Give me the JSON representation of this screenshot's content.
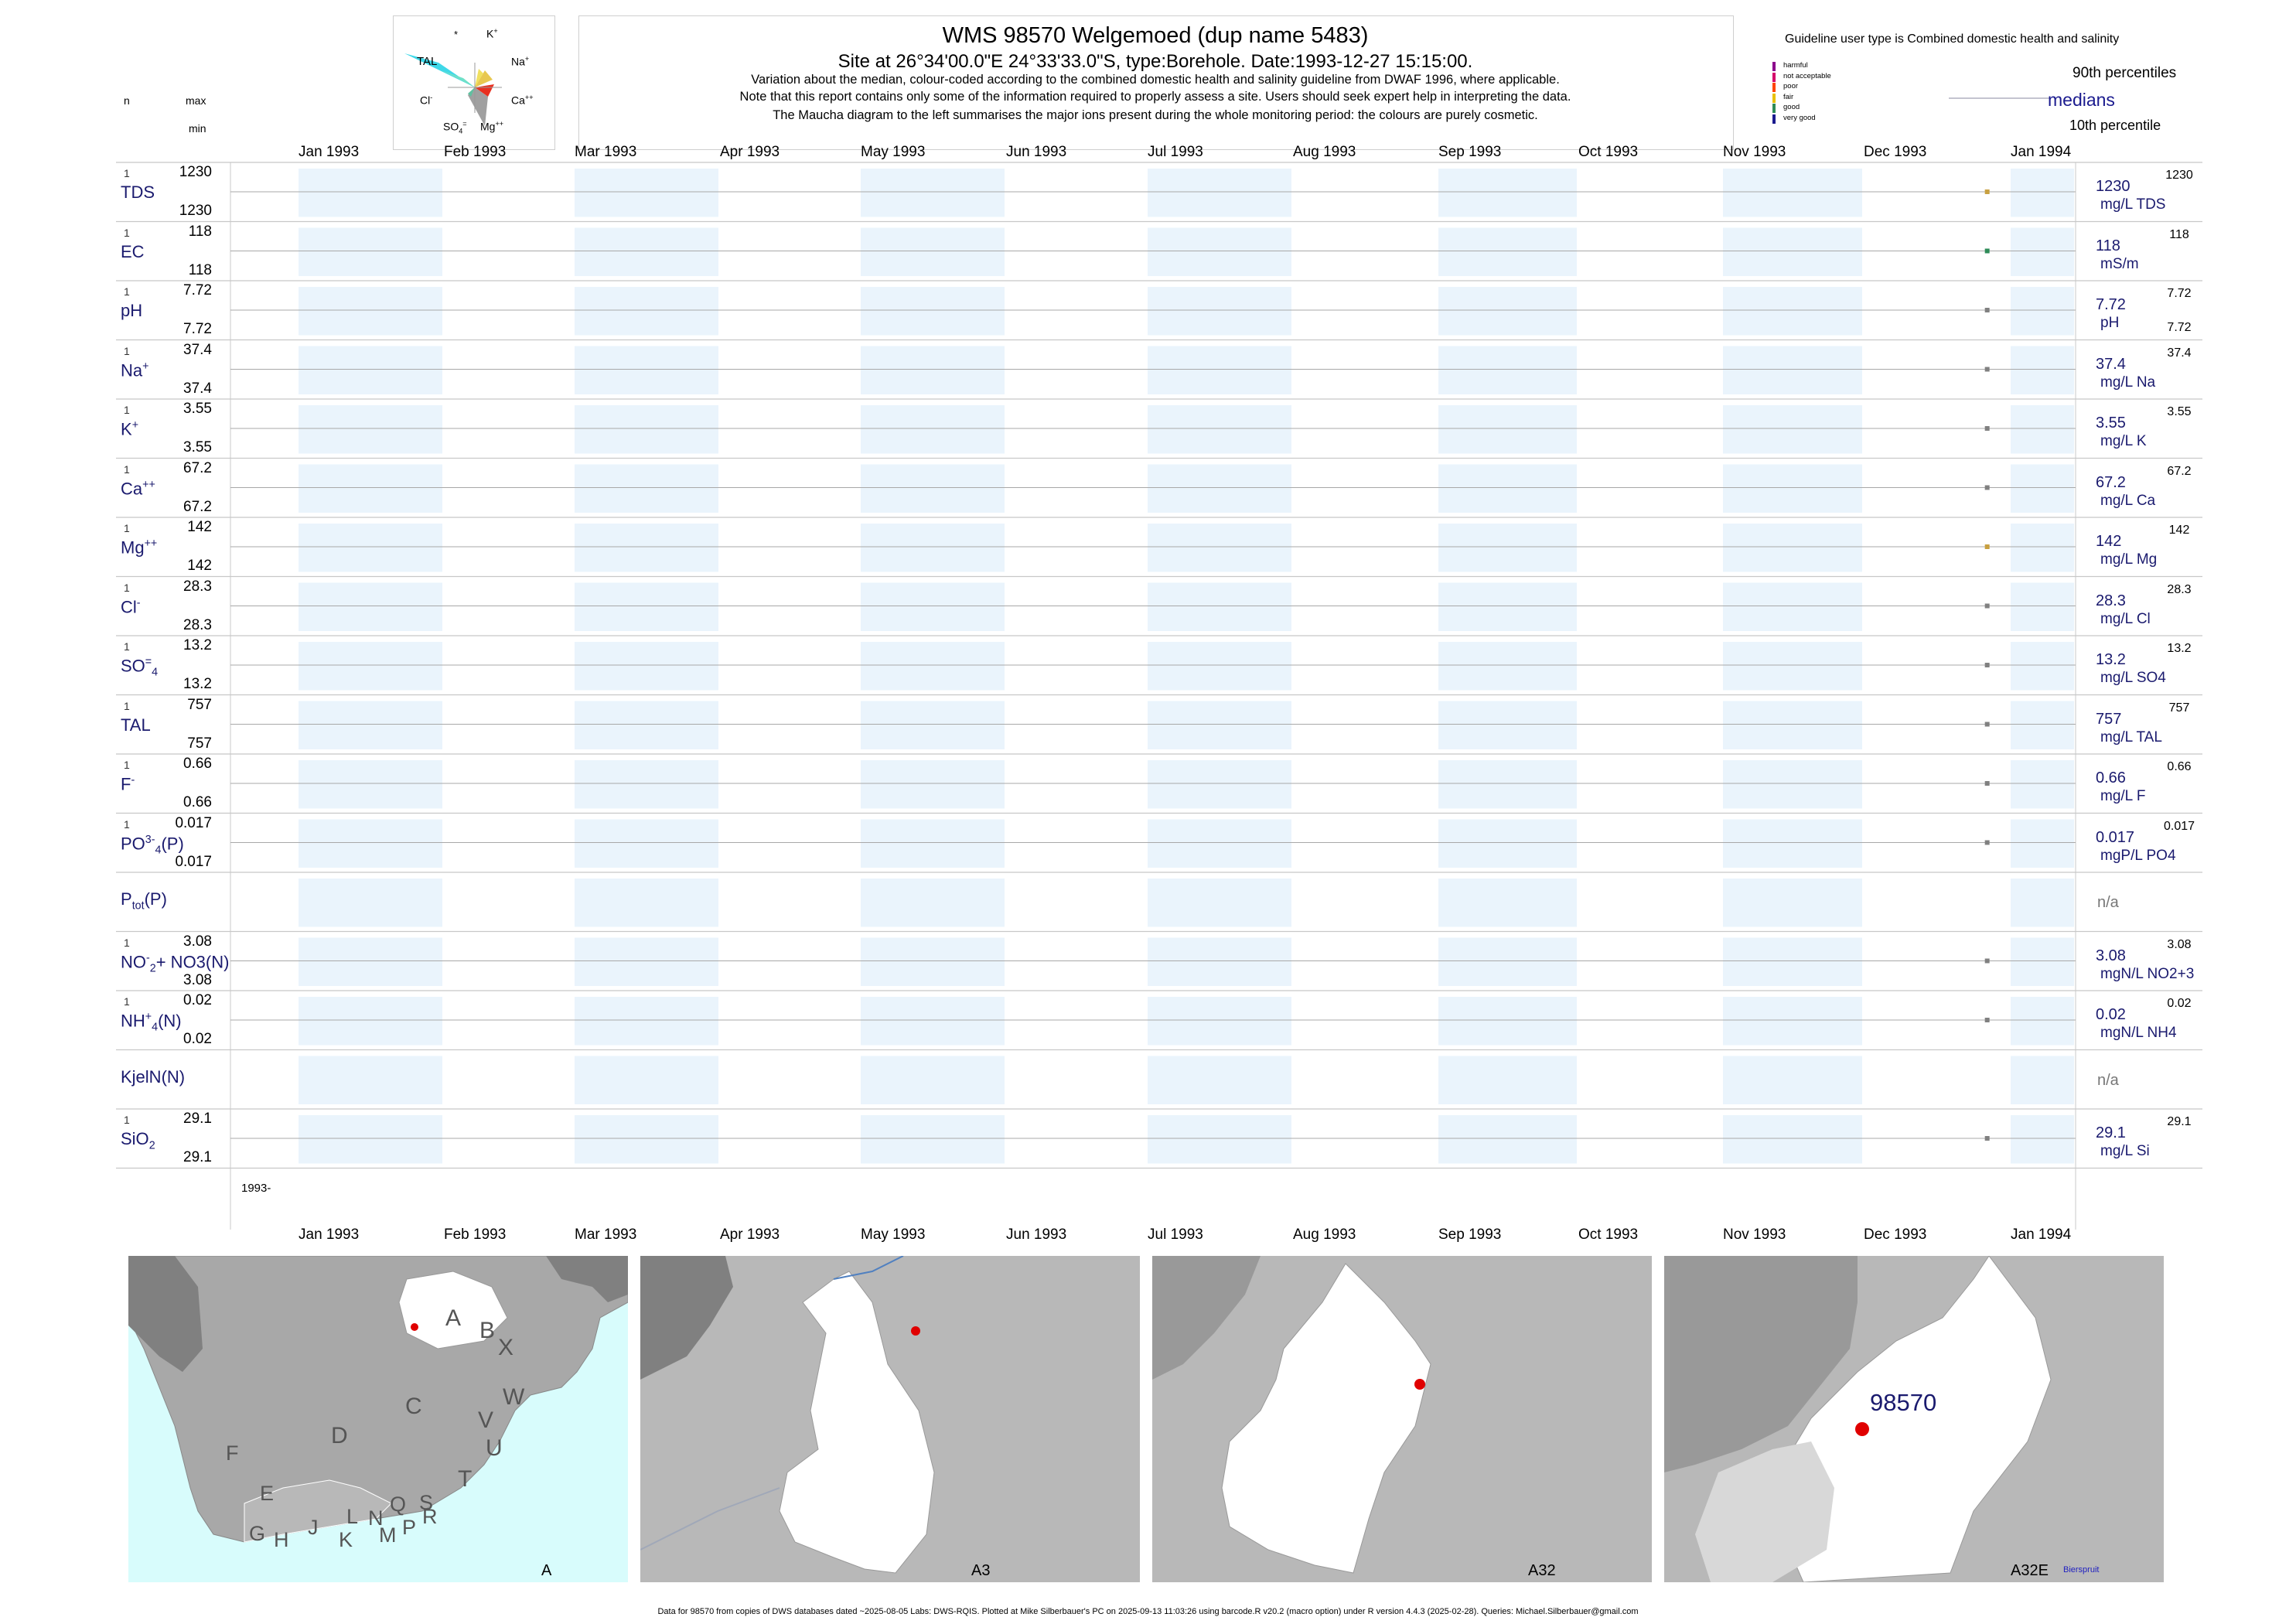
{
  "header": {
    "title": "WMS 98570  Welgemoed (dup name 5483)",
    "subtitle": "Site at 26°34'00.0\"E 24°33'33.0\"S, type:Borehole. Date:1993-12-27 15:15:00.",
    "note1": "Variation about the median,  colour-coded according to the combined domestic health and salinity guideline from DWAF 1996, where applicable.",
    "note2": "Note that this report contains only some of the information required to properly assess a site. Users should seek expert help in interpreting the data.",
    "note3": "The Maucha diagram to the left summarises the major ions present during the whole monitoring period: the colours are purely cosmetic."
  },
  "column_heads": {
    "n": "n",
    "max": "max",
    "min": "min"
  },
  "maucha": {
    "labels": {
      "star": "*",
      "k": "K",
      "k_sup": "+",
      "na": "Na",
      "na_sup": "+",
      "ca": "Ca",
      "ca_sup": "++",
      "mg": "Mg",
      "mg_sup": "++",
      "so4": "SO",
      "so4_sub": "4",
      "so4_sup": "=",
      "cl": "Cl",
      "cl_sup": "-",
      "tal": "TAL"
    }
  },
  "guideline": {
    "title": "Guideline user type is Combined domestic health and salinity",
    "levels": [
      {
        "label": "harmful",
        "color": "#8b008b"
      },
      {
        "label": "not acceptable",
        "color": "#d4006a"
      },
      {
        "label": "poor",
        "color": "#ff4500"
      },
      {
        "label": "fair",
        "color": "#e8c000"
      },
      {
        "label": "good",
        "color": "#2e8b57"
      },
      {
        "label": "very good",
        "color": "#1a1a8e"
      }
    ],
    "p90": "90th percentiles",
    "medians": "medians",
    "p10": "10th percentile"
  },
  "months": [
    "Jan 1993",
    "Feb 1993",
    "Mar 1993",
    "Apr 1993",
    "May 1993",
    "Jun 1993",
    "Jul 1993",
    "Aug 1993",
    "Sep 1993",
    "Oct 1993",
    "Nov 1993",
    "Dec 1993",
    "Jan 1994"
  ],
  "year_label": "1993-",
  "rows": [
    {
      "label": "TDS",
      "sup": "",
      "sub": "",
      "sub2": "",
      "tail": "",
      "n": "1",
      "max": "1230",
      "min": "1230",
      "value": "1230",
      "unit": "mg/L TDS",
      "rmax": "1230",
      "rmin": "",
      "marker": "#c8a040"
    },
    {
      "label": "EC",
      "sup": "",
      "sub": "",
      "sub2": "",
      "tail": "",
      "n": "1",
      "max": "118",
      "min": "118",
      "value": "118",
      "unit": "mS/m",
      "rmax": "118",
      "rmin": "",
      "marker": "#2e8b57"
    },
    {
      "label": "pH",
      "sup": "",
      "sub": "",
      "sub2": "",
      "tail": "",
      "n": "1",
      "max": "7.72",
      "min": "7.72",
      "value": "7.72",
      "unit": "pH",
      "rmax": "7.72",
      "rmin": "7.72",
      "marker": "#808080"
    },
    {
      "label": "Na",
      "sup": "+",
      "sub": "",
      "sub2": "",
      "tail": "",
      "n": "1",
      "max": "37.4",
      "min": "37.4",
      "value": "37.4",
      "unit": "mg/L Na",
      "rmax": "37.4",
      "rmin": "",
      "marker": "#808080"
    },
    {
      "label": "K",
      "sup": "+",
      "sub": "",
      "sub2": "",
      "tail": "",
      "n": "1",
      "max": "3.55",
      "min": "3.55",
      "value": "3.55",
      "unit": "mg/L K",
      "rmax": "3.55",
      "rmin": "",
      "marker": "#808080"
    },
    {
      "label": "Ca",
      "sup": "++",
      "sub": "",
      "sub2": "",
      "tail": "",
      "n": "1",
      "max": "67.2",
      "min": "67.2",
      "value": "67.2",
      "unit": "mg/L Ca",
      "rmax": "67.2",
      "rmin": "",
      "marker": "#808080"
    },
    {
      "label": "Mg",
      "sup": "++",
      "sub": "",
      "sub2": "",
      "tail": "",
      "n": "1",
      "max": "142",
      "min": "142",
      "value": "142",
      "unit": "mg/L Mg",
      "rmax": "142",
      "rmin": "",
      "marker": "#c8a040"
    },
    {
      "label": "Cl",
      "sup": "-",
      "sub": "",
      "sub2": "",
      "tail": "",
      "n": "1",
      "max": "28.3",
      "min": "28.3",
      "value": "28.3",
      "unit": "mg/L Cl",
      "rmax": "28.3",
      "rmin": "",
      "marker": "#808080"
    },
    {
      "label": "SO",
      "sup": "=",
      "sub": "4",
      "sub2": "",
      "tail": "",
      "n": "1",
      "max": "13.2",
      "min": "13.2",
      "value": "13.2",
      "unit": "mg/L SO4",
      "rmax": "13.2",
      "rmin": "",
      "marker": "#808080"
    },
    {
      "label": "TAL",
      "sup": "",
      "sub": "",
      "sub2": "",
      "tail": "",
      "n": "1",
      "max": "757",
      "min": "757",
      "value": "757",
      "unit": "mg/L TAL",
      "rmax": "757",
      "rmin": "",
      "marker": "#808080"
    },
    {
      "label": "F",
      "sup": "-",
      "sub": "",
      "sub2": "",
      "tail": "",
      "n": "1",
      "max": "0.66",
      "min": "0.66",
      "value": "0.66",
      "unit": "mg/L F",
      "rmax": "0.66",
      "rmin": "",
      "marker": "#808080"
    },
    {
      "label": "PO",
      "sup": "3-",
      "sub": "4",
      "sub2": "",
      "tail": "(P)",
      "n": "1",
      "max": "0.017",
      "min": "0.017",
      "value": "0.017",
      "unit": "mgP/L PO4",
      "rmax": "0.017",
      "rmin": "",
      "marker": "#808080"
    },
    {
      "label": "P",
      "sup": "",
      "sub": "tot",
      "sub2": "",
      "tail": "(P)",
      "n": "",
      "max": "",
      "min": "",
      "value": "n/a",
      "unit": "",
      "rmax": "",
      "rmin": "",
      "marker": ""
    },
    {
      "label": "NO",
      "sup": "-",
      "sub": "2",
      "sub2": "",
      "tail": "+ NO3(N)",
      "n": "1",
      "max": "3.08",
      "min": "3.08",
      "value": "3.08",
      "unit": "mgN/L NO2+3",
      "rmax": "3.08",
      "rmin": "",
      "marker": "#808080"
    },
    {
      "label": "NH",
      "sup": "+",
      "sub": "4",
      "sub2": "",
      "tail": "(N)",
      "n": "1",
      "max": "0.02",
      "min": "0.02",
      "value": "0.02",
      "unit": "mgN/L NH4",
      "rmax": "0.02",
      "rmin": "",
      "marker": "#808080"
    },
    {
      "label": "KjelN(N)",
      "sup": "",
      "sub": "",
      "sub2": "",
      "tail": "",
      "n": "",
      "max": "",
      "min": "",
      "value": "n/a",
      "unit": "",
      "rmax": "",
      "rmin": "",
      "marker": ""
    },
    {
      "label": "SiO",
      "sup": "",
      "sub": "2",
      "sub2": "",
      "tail": "",
      "n": "1",
      "max": "29.1",
      "min": "29.1",
      "value": "29.1",
      "unit": "mg/L Si",
      "rmax": "29.1",
      "rmin": "",
      "marker": "#808080"
    }
  ],
  "chart_data": {
    "type": "scatter",
    "x_range": [
      "1993-01-01",
      "1994-01-31"
    ],
    "sample_date": "1993-12-27",
    "series": [
      {
        "name": "TDS",
        "unit": "mg/L TDS",
        "x": [
          "1993-12-27"
        ],
        "values": [
          1230
        ]
      },
      {
        "name": "EC",
        "unit": "mS/m",
        "x": [
          "1993-12-27"
        ],
        "values": [
          118
        ]
      },
      {
        "name": "pH",
        "unit": "pH",
        "x": [
          "1993-12-27"
        ],
        "values": [
          7.72
        ]
      },
      {
        "name": "Na",
        "unit": "mg/L Na",
        "x": [
          "1993-12-27"
        ],
        "values": [
          37.4
        ]
      },
      {
        "name": "K",
        "unit": "mg/L K",
        "x": [
          "1993-12-27"
        ],
        "values": [
          3.55
        ]
      },
      {
        "name": "Ca",
        "unit": "mg/L Ca",
        "x": [
          "1993-12-27"
        ],
        "values": [
          67.2
        ]
      },
      {
        "name": "Mg",
        "unit": "mg/L Mg",
        "x": [
          "1993-12-27"
        ],
        "values": [
          142
        ]
      },
      {
        "name": "Cl",
        "unit": "mg/L Cl",
        "x": [
          "1993-12-27"
        ],
        "values": [
          28.3
        ]
      },
      {
        "name": "SO4",
        "unit": "mg/L SO4",
        "x": [
          "1993-12-27"
        ],
        "values": [
          13.2
        ]
      },
      {
        "name": "TAL",
        "unit": "mg/L TAL",
        "x": [
          "1993-12-27"
        ],
        "values": [
          757
        ]
      },
      {
        "name": "F",
        "unit": "mg/L F",
        "x": [
          "1993-12-27"
        ],
        "values": [
          0.66
        ]
      },
      {
        "name": "PO4(P)",
        "unit": "mgP/L PO4",
        "x": [
          "1993-12-27"
        ],
        "values": [
          0.017
        ]
      },
      {
        "name": "NO2+NO3(N)",
        "unit": "mgN/L NO2+3",
        "x": [
          "1993-12-27"
        ],
        "values": [
          3.08
        ]
      },
      {
        "name": "NH4(N)",
        "unit": "mgN/L NH4",
        "x": [
          "1993-12-27"
        ],
        "values": [
          0.02
        ]
      },
      {
        "name": "SiO2",
        "unit": "mg/L Si",
        "x": [
          "1993-12-27"
        ],
        "values": [
          29.1
        ]
      }
    ]
  },
  "maps": {
    "m1": {
      "label": "A",
      "letters": [
        "A",
        "B",
        "X",
        "W",
        "C",
        "D",
        "V",
        "U",
        "T",
        "F",
        "E",
        "L",
        "N",
        "Q",
        "S",
        "G",
        "H",
        "J",
        "K",
        "M",
        "P",
        "R"
      ]
    },
    "m2": {
      "label": "A3"
    },
    "m3": {
      "label": "A32"
    },
    "m4": {
      "label": "A32E",
      "site": "98570",
      "river": "Bierspruit"
    }
  },
  "footer": "Data for 98570 from copies of DWS databases dated ~2025-08-05 Labs: DWS-RQIS. Plotted at Mike Silberbauer's PC on 2025-09-13 11:03:26 using barcode.R v20.2 (macro option) under R version 4.4.3 (2025-02-28). Queries: Michael.Silberbauer@gmail.com"
}
